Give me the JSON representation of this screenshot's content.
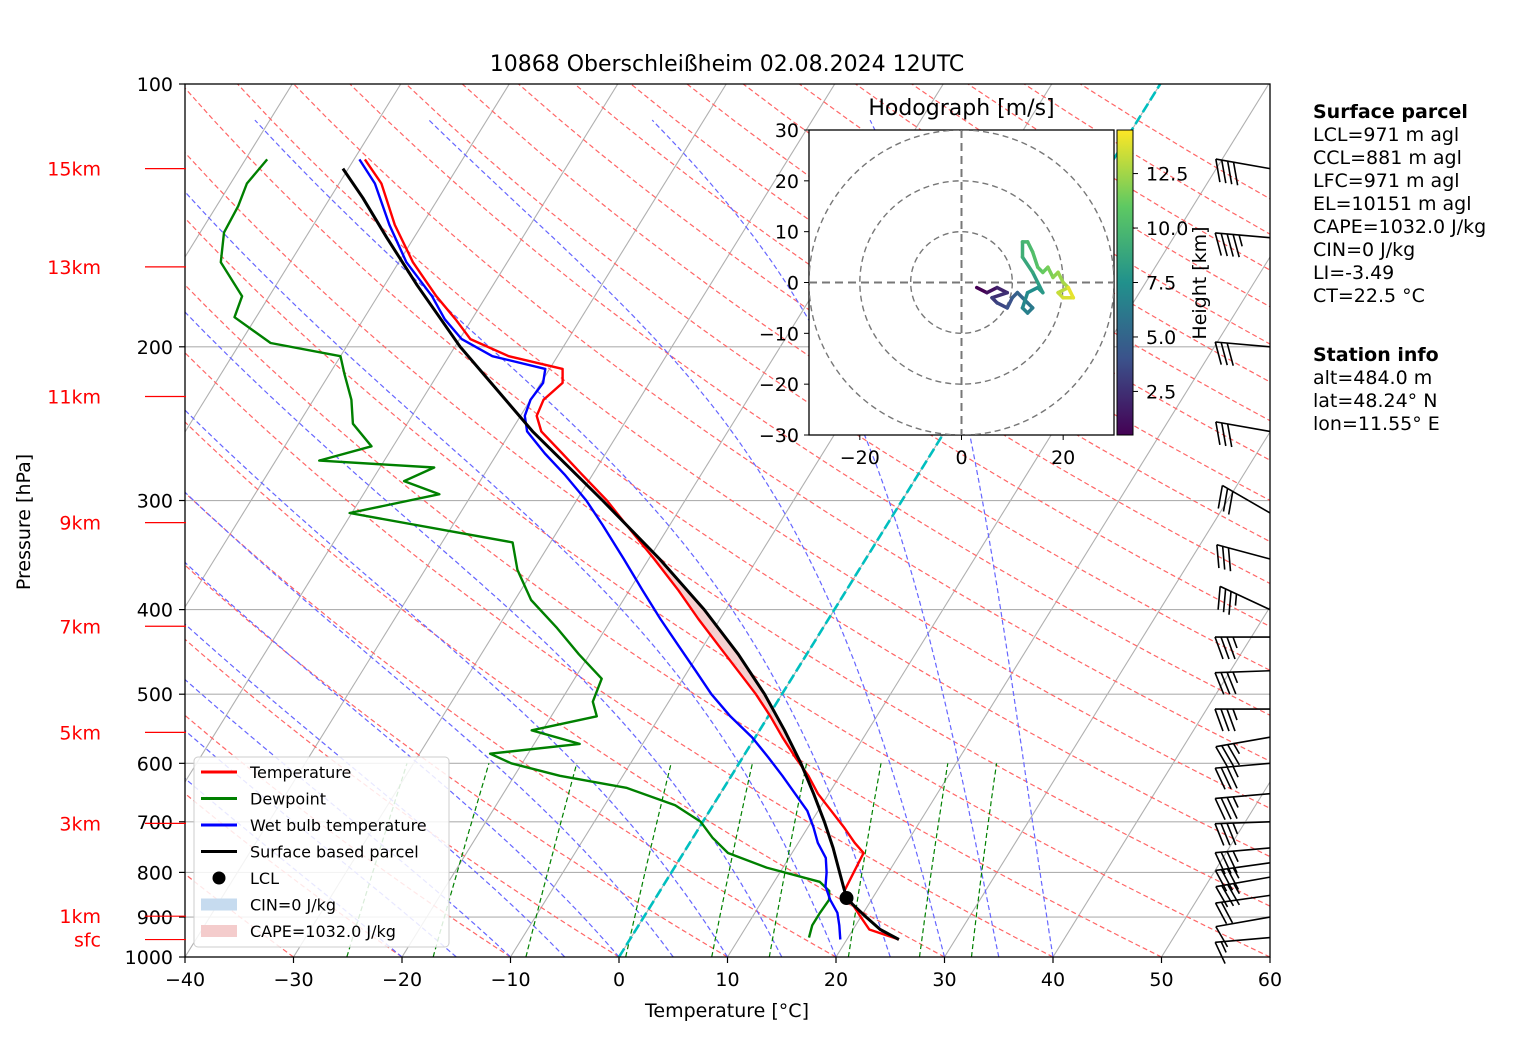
{
  "title": "10868 Oberschleißheim 02.08.2024 12UTC",
  "chart_data": {
    "type": "line",
    "title": "10868 Oberschleißheim 02.08.2024 12UTC",
    "xlabel": "Temperature [°C]",
    "ylabel": "Pressure [hPa]",
    "xlim": [
      -40,
      60
    ],
    "ylim": [
      1000,
      100
    ],
    "y_scale": "log",
    "x_skewed": true,
    "grid": true,
    "x_ticks": [
      -40,
      -30,
      -20,
      -10,
      0,
      10,
      20,
      30,
      40,
      50,
      60
    ],
    "y_ticks": [
      100,
      200,
      300,
      400,
      500,
      600,
      700,
      800,
      900,
      1000
    ],
    "height_labels": [
      {
        "label": "15km",
        "p": 125
      },
      {
        "label": "13km",
        "p": 162
      },
      {
        "label": "11km",
        "p": 228
      },
      {
        "label": "9km",
        "p": 318
      },
      {
        "label": "7km",
        "p": 418
      },
      {
        "label": "5km",
        "p": 553
      },
      {
        "label": "3km",
        "p": 703
      },
      {
        "label": "1km",
        "p": 898
      },
      {
        "label": "sfc",
        "p": 955
      }
    ],
    "series": [
      {
        "name": "Temperature",
        "color": "#ff0000",
        "points": [
          [
            955,
            24.8
          ],
          [
            930,
            21.5
          ],
          [
            900,
            20.0
          ],
          [
            870,
            18.5
          ],
          [
            840,
            17.0
          ],
          [
            800,
            16.8
          ],
          [
            760,
            16.6
          ],
          [
            740,
            15.2
          ],
          [
            710,
            13.3
          ],
          [
            680,
            11.2
          ],
          [
            650,
            9.0
          ],
          [
            620,
            7.1
          ],
          [
            590,
            4.8
          ],
          [
            560,
            2.5
          ],
          [
            530,
            0.2
          ],
          [
            500,
            -2.4
          ],
          [
            470,
            -5.4
          ],
          [
            440,
            -8.6
          ],
          [
            410,
            -12.0
          ],
          [
            380,
            -15.5
          ],
          [
            350,
            -19.5
          ],
          [
            320,
            -24.0
          ],
          [
            300,
            -27.2
          ],
          [
            280,
            -31.0
          ],
          [
            265,
            -34.0
          ],
          [
            250,
            -37.2
          ],
          [
            240,
            -38.5
          ],
          [
            230,
            -38.8
          ],
          [
            220,
            -38.0
          ],
          [
            212,
            -38.8
          ],
          [
            205,
            -44.5
          ],
          [
            196,
            -49.0
          ],
          [
            186,
            -51.5
          ],
          [
            175,
            -54.6
          ],
          [
            160,
            -58.7
          ],
          [
            145,
            -62.5
          ],
          [
            130,
            -66.1
          ],
          [
            122,
            -69.0
          ]
        ]
      },
      {
        "name": "Dewpoint",
        "color": "#008000",
        "points": [
          [
            950,
            16.4
          ],
          [
            920,
            16.0
          ],
          [
            890,
            16.0
          ],
          [
            860,
            16.1
          ],
          [
            840,
            15.6
          ],
          [
            820,
            14.2
          ],
          [
            790,
            8.5
          ],
          [
            760,
            4.1
          ],
          [
            730,
            1.8
          ],
          [
            700,
            -0.2
          ],
          [
            670,
            -3.5
          ],
          [
            640,
            -9.0
          ],
          [
            620,
            -15.8
          ],
          [
            600,
            -21.0
          ],
          [
            585,
            -23.5
          ],
          [
            570,
            -15.8
          ],
          [
            550,
            -21.0
          ],
          [
            530,
            -15.8
          ],
          [
            510,
            -17.0
          ],
          [
            480,
            -17.5
          ],
          [
            450,
            -21.0
          ],
          [
            420,
            -24.5
          ],
          [
            390,
            -28.5
          ],
          [
            360,
            -31.5
          ],
          [
            335,
            -33.5
          ],
          [
            310,
            -50.2
          ],
          [
            295,
            -43.0
          ],
          [
            285,
            -47.0
          ],
          [
            275,
            -45.0
          ],
          [
            270,
            -56.0
          ],
          [
            260,
            -52.0
          ],
          [
            245,
            -55.0
          ],
          [
            230,
            -56.5
          ],
          [
            215,
            -58.6
          ],
          [
            205,
            -60.0
          ],
          [
            198,
            -67.2
          ],
          [
            185,
            -72.0
          ],
          [
            175,
            -72.5
          ],
          [
            160,
            -76.4
          ],
          [
            148,
            -77.8
          ],
          [
            138,
            -78.0
          ],
          [
            130,
            -78.5
          ],
          [
            122,
            -78.0
          ]
        ]
      },
      {
        "name": "Wet bulb temperature",
        "color": "#0000ff",
        "points": [
          [
            955,
            19.4
          ],
          [
            920,
            18.5
          ],
          [
            890,
            17.6
          ],
          [
            860,
            16.2
          ],
          [
            830,
            15.0
          ],
          [
            800,
            14.3
          ],
          [
            770,
            13.4
          ],
          [
            740,
            11.8
          ],
          [
            710,
            10.5
          ],
          [
            680,
            9.0
          ],
          [
            650,
            6.9
          ],
          [
            620,
            4.7
          ],
          [
            590,
            2.3
          ],
          [
            560,
            -0.3
          ],
          [
            530,
            -3.5
          ],
          [
            500,
            -6.5
          ],
          [
            470,
            -9.3
          ],
          [
            440,
            -12.3
          ],
          [
            410,
            -15.5
          ],
          [
            380,
            -18.8
          ],
          [
            350,
            -22.3
          ],
          [
            320,
            -26.2
          ],
          [
            300,
            -29.1
          ],
          [
            280,
            -32.6
          ],
          [
            265,
            -35.6
          ],
          [
            250,
            -38.5
          ],
          [
            240,
            -39.6
          ],
          [
            230,
            -40.0
          ],
          [
            220,
            -39.8
          ],
          [
            212,
            -40.4
          ],
          [
            205,
            -46.0
          ],
          [
            196,
            -49.8
          ],
          [
            186,
            -52.5
          ],
          [
            175,
            -55.0
          ],
          [
            160,
            -59.3
          ],
          [
            145,
            -63.0
          ],
          [
            130,
            -66.7
          ],
          [
            122,
            -69.5
          ]
        ]
      },
      {
        "name": "Surface based parcel",
        "color": "#000000",
        "points": [
          [
            955,
            24.8
          ],
          [
            930,
            22.5
          ],
          [
            900,
            20.5
          ],
          [
            870,
            18.5
          ],
          [
            856,
            17.6
          ],
          [
            800,
            15.5
          ],
          [
            750,
            13.5
          ],
          [
            700,
            11.2
          ],
          [
            650,
            8.6
          ],
          [
            600,
            5.7
          ],
          [
            550,
            2.3
          ],
          [
            500,
            -1.6
          ],
          [
            450,
            -6.3
          ],
          [
            400,
            -12.0
          ],
          [
            350,
            -19.0
          ],
          [
            300,
            -27.6
          ],
          [
            250,
            -38.0
          ],
          [
            200,
            -49.5
          ],
          [
            170,
            -57.0
          ],
          [
            150,
            -62.5
          ],
          [
            135,
            -67.0
          ],
          [
            125,
            -70.5
          ]
        ]
      }
    ],
    "lcl": {
      "name": "LCL",
      "p": 856,
      "t": 17.6
    },
    "legend": [
      {
        "label": "Temperature",
        "kind": "line",
        "color": "#ff0000"
      },
      {
        "label": "Dewpoint",
        "kind": "line",
        "color": "#008000"
      },
      {
        "label": "Wet bulb temperature",
        "kind": "line",
        "color": "#0000ff"
      },
      {
        "label": "Surface based parcel",
        "kind": "line",
        "color": "#000000"
      },
      {
        "label": "LCL",
        "kind": "marker",
        "color": "#000000"
      },
      {
        "label": "CIN=0 J/kg",
        "kind": "patch",
        "color": "#c6dbef"
      },
      {
        "label": "CAPE=1032.0 J/kg",
        "kind": "patch",
        "color": "#f4cccc"
      }
    ],
    "legend_position": "lower-left",
    "hodograph": {
      "title": "Hodograph [m/s]",
      "xlim": [
        -30,
        30
      ],
      "ylim": [
        -30,
        30
      ],
      "ticks_x": [
        -20,
        0,
        20
      ],
      "ticks_y": [
        -30,
        -20,
        -10,
        0,
        10,
        20,
        30
      ],
      "rings": [
        10,
        20,
        30
      ],
      "colorbar_label": "Height [km]",
      "colorbar_ticks": [
        2.5,
        5.0,
        7.5,
        10.0,
        12.5
      ],
      "colorbar_range": [
        0.5,
        14.5
      ],
      "trace": [
        [
          3,
          -1,
          0.5
        ],
        [
          5,
          -2,
          1.2
        ],
        [
          7,
          -1,
          2.0
        ],
        [
          9,
          -2,
          2.5
        ],
        [
          6,
          -3,
          3.0
        ],
        [
          7,
          -4,
          3.5
        ],
        [
          9,
          -5,
          4.0
        ],
        [
          10,
          -3,
          4.6
        ],
        [
          11,
          -2,
          5.0
        ],
        [
          12,
          -3,
          5.5
        ],
        [
          13,
          -4,
          6.0
        ],
        [
          14,
          -5,
          6.3
        ],
        [
          13,
          -6,
          6.6
        ],
        [
          12,
          -5,
          7.0
        ],
        [
          13,
          -2,
          7.3
        ],
        [
          15,
          -1,
          7.6
        ],
        [
          16,
          -2,
          8.0
        ],
        [
          15,
          0,
          8.3
        ],
        [
          14,
          2,
          8.8
        ],
        [
          12,
          5,
          9.3
        ],
        [
          12,
          8,
          9.7
        ],
        [
          13,
          8,
          10.0
        ],
        [
          14,
          6,
          10.4
        ],
        [
          15,
          3,
          10.8
        ],
        [
          16,
          2,
          11.2
        ],
        [
          17,
          3,
          11.6
        ],
        [
          18,
          1,
          12.0
        ],
        [
          19,
          2,
          12.3
        ],
        [
          20,
          0,
          12.6
        ],
        [
          21,
          -1,
          13.0
        ],
        [
          19,
          -2,
          13.3
        ],
        [
          20,
          -3,
          13.7
        ],
        [
          22,
          -3,
          14.0
        ],
        [
          21,
          -1,
          14.3
        ]
      ]
    },
    "wind_barbs": [
      {
        "p": 125,
        "speed": 40,
        "dir_deg": 280
      },
      {
        "p": 150,
        "speed": 35,
        "dir_deg": 275
      },
      {
        "p": 200,
        "speed": 30,
        "dir_deg": 275
      },
      {
        "p": 250,
        "speed": 30,
        "dir_deg": 280
      },
      {
        "p": 310,
        "speed": 30,
        "dir_deg": 300
      },
      {
        "p": 350,
        "speed": 30,
        "dir_deg": 285
      },
      {
        "p": 400,
        "speed": 25,
        "dir_deg": 295
      },
      {
        "p": 430,
        "speed": 25,
        "dir_deg": 270
      },
      {
        "p": 470,
        "speed": 25,
        "dir_deg": 268
      },
      {
        "p": 520,
        "speed": 25,
        "dir_deg": 270
      },
      {
        "p": 560,
        "speed": 25,
        "dir_deg": 260
      },
      {
        "p": 600,
        "speed": 25,
        "dir_deg": 265
      },
      {
        "p": 650,
        "speed": 25,
        "dir_deg": 265
      },
      {
        "p": 700,
        "speed": 25,
        "dir_deg": 268
      },
      {
        "p": 750,
        "speed": 25,
        "dir_deg": 265
      },
      {
        "p": 780,
        "speed": 25,
        "dir_deg": 262
      },
      {
        "p": 810,
        "speed": 25,
        "dir_deg": 260
      },
      {
        "p": 850,
        "speed": 20,
        "dir_deg": 262
      },
      {
        "p": 900,
        "speed": 10,
        "dir_deg": 260
      },
      {
        "p": 950,
        "speed": 5,
        "dir_deg": 265
      }
    ]
  },
  "surface_parcel": {
    "heading": "Surface parcel",
    "lines": [
      "LCL=971 m agl",
      "CCL=881 m agl",
      "LFC=971 m agl",
      "EL=10151 m agl",
      "CAPE=1032.0 J/kg",
      "CIN=0 J/kg",
      "LI=-3.49",
      "CT=22.5 °C"
    ]
  },
  "station_info": {
    "heading": "Station info",
    "lines": [
      "alt=484.0 m",
      "lat=48.24° N",
      "lon=11.55° E"
    ]
  },
  "colors": {
    "isotherm_grid": "#b0b0b0",
    "dry_adiabat": "#ff6666",
    "moist_adiabat": "#6666ff",
    "mixing_ratio": "#008000",
    "freezing_level": "#00bfbf",
    "height_label": "#ff0000"
  }
}
